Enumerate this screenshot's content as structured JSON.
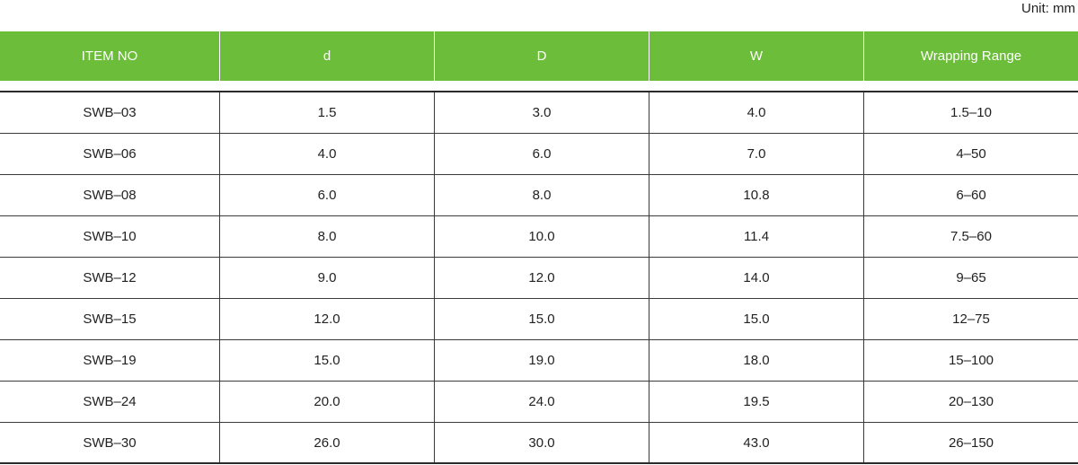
{
  "unit_label": "Unit: mm",
  "colors": {
    "header_bg": "#6cbd3a",
    "header_text": "#ffffff",
    "rule": "#2b2b2b"
  },
  "table": {
    "headers": [
      "ITEM NO",
      "d",
      "D",
      "W",
      "Wrapping Range"
    ],
    "rows": [
      [
        "SWB–03",
        "1.5",
        "3.0",
        "4.0",
        "1.5–10"
      ],
      [
        "SWB–06",
        "4.0",
        "6.0",
        "7.0",
        "4–50"
      ],
      [
        "SWB–08",
        "6.0",
        "8.0",
        "10.8",
        "6–60"
      ],
      [
        "SWB–10",
        "8.0",
        "10.0",
        "11.4",
        "7.5–60"
      ],
      [
        "SWB–12",
        "9.0",
        "12.0",
        "14.0",
        "9–65"
      ],
      [
        "SWB–15",
        "12.0",
        "15.0",
        "15.0",
        "12–75"
      ],
      [
        "SWB–19",
        "15.0",
        "19.0",
        "18.0",
        "15–100"
      ],
      [
        "SWB–24",
        "20.0",
        "24.0",
        "19.5",
        "20–130"
      ],
      [
        "SWB–30",
        "26.0",
        "30.0",
        "43.0",
        "26–150"
      ]
    ]
  }
}
